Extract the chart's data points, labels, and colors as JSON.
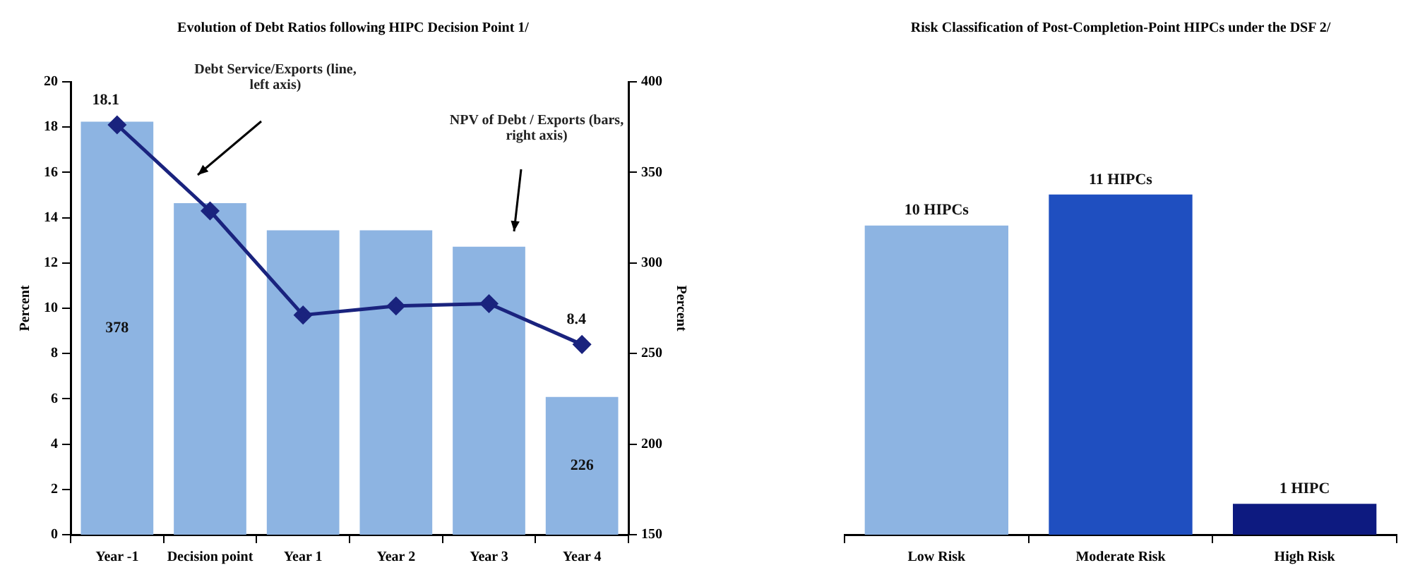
{
  "chart_data": [
    {
      "type": "bar",
      "title": "Evolution of Debt Ratios following HIPC Decision Point 1/",
      "categories": [
        "Year -1",
        "Decision point",
        "Year 1",
        "Year 2",
        "Year 3",
        "Year 4"
      ],
      "ylabel": "Percent",
      "y2label": "Percent",
      "ylim": [
        0,
        20
      ],
      "yticks": [
        0,
        2,
        4,
        6,
        8,
        10,
        12,
        14,
        16,
        18,
        20
      ],
      "y2lim": [
        150,
        400
      ],
      "y2ticks": [
        150,
        200,
        250,
        300,
        350,
        400
      ],
      "grid": false,
      "marker": "diamond",
      "annotations": [
        "Debt Service/Exports (line, left axis)",
        "NPV of Debt / Exports (bars, right axis)"
      ],
      "series": [
        {
          "type": "bar",
          "axis": "y2",
          "color": "#8db4e2",
          "values": [
            378,
            333,
            318,
            318,
            309,
            226
          ],
          "value_labels": [
            "378",
            null,
            null,
            null,
            null,
            "226"
          ]
        },
        {
          "type": "line",
          "axis": "y",
          "color": "#1a237e",
          "values": [
            18.1,
            14.3,
            9.7,
            10.1,
            10.2,
            8.4
          ],
          "value_labels": [
            "18.1",
            null,
            null,
            null,
            null,
            "8.4"
          ]
        }
      ]
    },
    {
      "type": "bar",
      "title": "Risk Classification of Post-Completion-Point HIPCs under the DSF 2/",
      "categories": [
        "Low Risk",
        "Moderate Risk",
        "High Risk"
      ],
      "values": [
        10,
        11,
        1
      ],
      "colors": [
        "#8db4e2",
        "#1f4fc0",
        "#0d1a80"
      ],
      "value_labels": [
        "10 HIPCs",
        "11 HIPCs",
        "1 HIPC"
      ],
      "tick_labels": "x",
      "grid": false
    }
  ]
}
